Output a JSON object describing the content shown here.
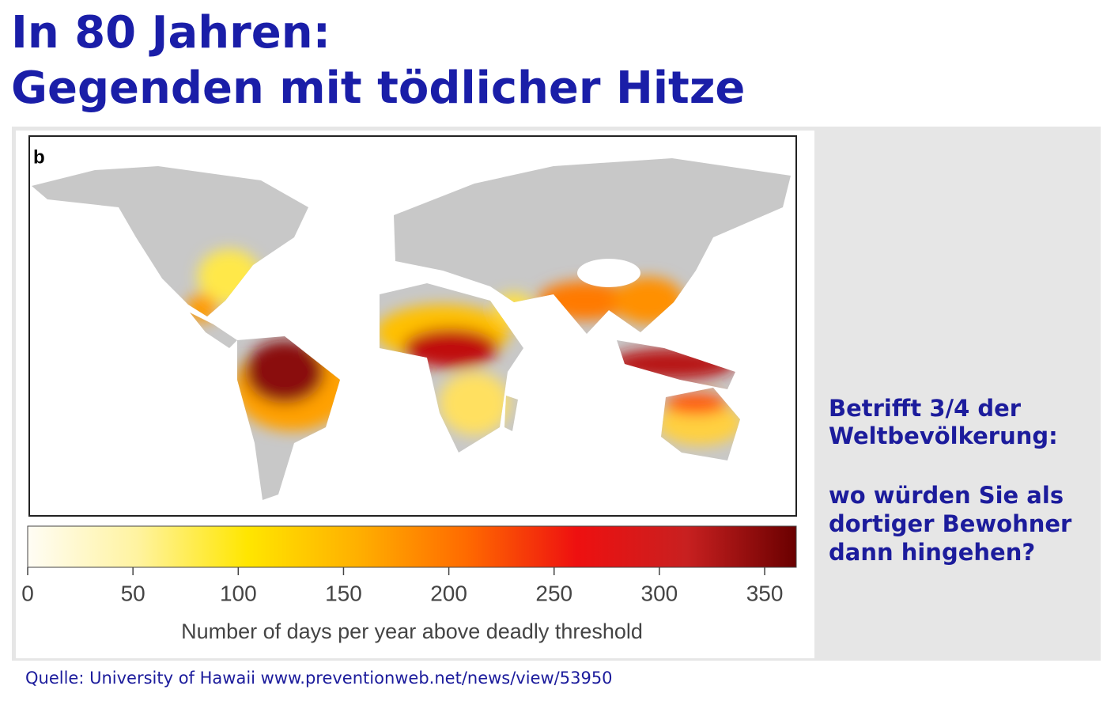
{
  "title": [
    "In 80 Jahren:",
    "Gegenden mit tödlicher Hitze"
  ],
  "map": {
    "panel_label": "b",
    "colorbar": {
      "range": [
        0,
        365
      ],
      "ticks": [
        0,
        50,
        100,
        150,
        200,
        250,
        300,
        350
      ],
      "label": "Number of days per year above deadly threshold",
      "colors": [
        "#fffdf5",
        "#fff3a0",
        "#ffe600",
        "#ffb000",
        "#ff6a00",
        "#ee1010",
        "#c82020",
        "#6a0000"
      ]
    }
  },
  "side_text": [
    "Betrifft 3/4 der",
    "Weltbevölkerung:",
    "wo würden Sie als",
    "dortiger Bewohner",
    "dann hingehen?"
  ],
  "source": "Quelle: University of Hawaii www.preventionweb.net/news/view/53950"
}
